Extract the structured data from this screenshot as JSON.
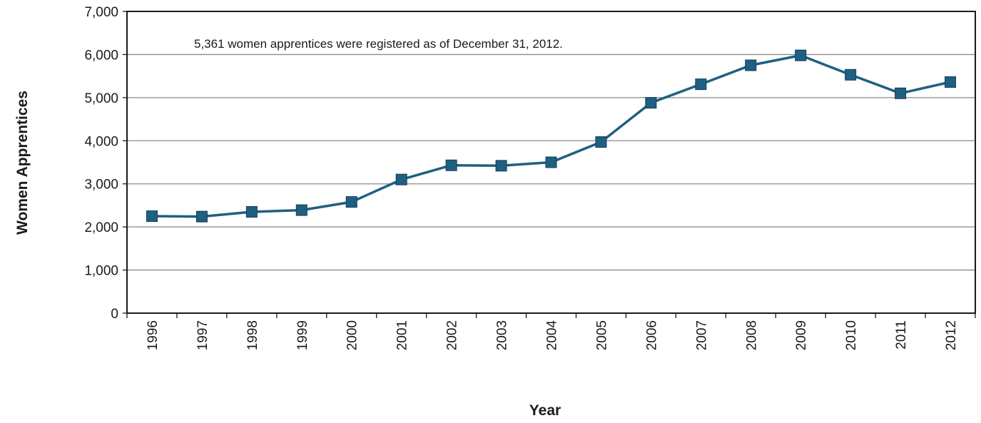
{
  "chart_data": {
    "type": "line",
    "title": "",
    "xlabel": "Year",
    "ylabel": "Women Apprentices",
    "annotation": "5,361  women apprentices were registered as of December 31, 2012.",
    "categories": [
      "1996",
      "1997",
      "1998",
      "1999",
      "2000",
      "2001",
      "2002",
      "2003",
      "2004",
      "2005",
      "2006",
      "2007",
      "2008",
      "2009",
      "2010",
      "2011",
      "2012"
    ],
    "series": [
      {
        "values": [
          2250,
          2240,
          2350,
          2390,
          2580,
          3100,
          3430,
          3420,
          3500,
          3970,
          4880,
          5310,
          5750,
          5980,
          5530,
          5100,
          5361
        ]
      }
    ],
    "ylim": [
      0,
      7000
    ],
    "yticks": [
      0,
      1000,
      2000,
      3000,
      4000,
      5000,
      6000,
      7000
    ],
    "ytick_labels": [
      "0",
      "1,000",
      "2,000",
      "3,000",
      "4,000",
      "5,000",
      "6,000",
      "7,000"
    ],
    "grid": true,
    "line_color": "#1f5f82",
    "marker_color": "#1f5f82",
    "marker": "square",
    "legend": "none"
  }
}
